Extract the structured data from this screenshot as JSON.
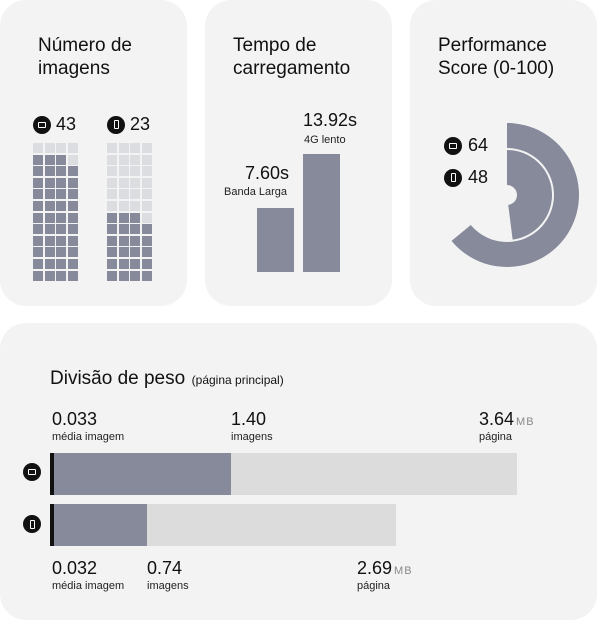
{
  "chart_data": [
    {
      "type": "waffle",
      "title": "Número de\nimagens",
      "series": [
        {
          "name": "desktop",
          "icon": "desktop-icon",
          "value": 43,
          "capacity": 48
        },
        {
          "name": "mobile",
          "icon": "mobile-icon",
          "value": 23,
          "capacity": 48
        }
      ]
    },
    {
      "type": "bar",
      "title": "Tempo de\ncarregamento",
      "categories": [
        "Banda Larga",
        "4G lento"
      ],
      "values": [
        7.6,
        13.92
      ],
      "value_labels": [
        "7.60s",
        "13.92s"
      ]
    },
    {
      "type": "radial-bar",
      "title": "Performance\nScore (0-100)",
      "ylim": [
        0,
        100
      ],
      "series": [
        {
          "name": "desktop",
          "icon": "desktop-icon",
          "value": 64
        },
        {
          "name": "mobile",
          "icon": "mobile-icon",
          "value": 48
        }
      ]
    },
    {
      "type": "stacked-hbar",
      "title": "Divisão de peso",
      "subtitle": "(página principal)",
      "unit": "MB",
      "max": 3.64,
      "series": [
        {
          "name": "desktop",
          "icon": "desktop-icon",
          "avg_image": 0.033,
          "avg_image_label": "0.033",
          "images": 1.4,
          "images_label": "1.40",
          "page": 3.64,
          "page_label": "3.64"
        },
        {
          "name": "mobile",
          "icon": "mobile-icon",
          "avg_image": 0.032,
          "avg_image_label": "0.032",
          "images": 0.74,
          "images_label": "0.74",
          "page": 2.69,
          "page_label": "2.69"
        }
      ],
      "labels": {
        "avg_image": "média imagem",
        "images": "imagens",
        "page": "página"
      }
    }
  ]
}
